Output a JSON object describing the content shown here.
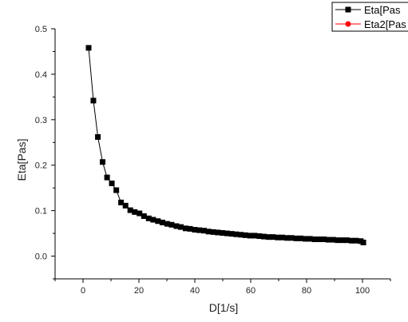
{
  "chart_data": {
    "type": "line",
    "title": "",
    "xlabel": "D[1/s]",
    "ylabel": "Eta[Pas]",
    "xlim": [
      -10,
      110
    ],
    "ylim": [
      -0.05,
      0.5
    ],
    "x_ticks": [
      0,
      20,
      40,
      60,
      80,
      100
    ],
    "y_ticks": [
      0.0,
      0.1,
      0.2,
      0.3,
      0.4,
      0.5
    ],
    "x_tick_labels": [
      "0",
      "20",
      "40",
      "60",
      "80",
      "100"
    ],
    "y_tick_labels": [
      "0.0",
      "0.1",
      "0.2",
      "0.3",
      "0.4",
      "0.5"
    ],
    "grid": false,
    "legend_position": "top-right",
    "colors": {
      "series1": "#000000",
      "series2": "#ff0000"
    },
    "series": [
      {
        "name": "Eta[Pas",
        "marker": "square",
        "color": "#000000",
        "x": [
          2,
          3.7,
          5.3,
          7,
          8.6,
          10.3,
          11.9,
          13.6,
          15.2,
          16.9,
          18.5,
          20.2,
          21.8,
          23.5,
          25.1,
          26.8,
          28.4,
          30.1,
          31.7,
          33.4,
          35,
          36.7,
          38.3,
          40,
          41.6,
          43.3,
          44.9,
          46.6,
          48.2,
          49.9,
          51.5,
          53.2,
          54.8,
          56.5,
          58.1,
          59.8,
          61.4,
          63.1,
          64.7,
          66.4,
          68,
          69.7,
          71.3,
          73,
          74.6,
          76.3,
          77.9,
          79.6,
          81.2,
          82.9,
          84.5,
          86.2,
          87.8,
          89.5,
          91.1,
          92.8,
          94.4,
          96.1,
          97.7,
          99.4,
          100.3
        ],
        "values": [
          0.458,
          0.342,
          0.262,
          0.207,
          0.173,
          0.16,
          0.145,
          0.118,
          0.111,
          0.101,
          0.097,
          0.094,
          0.088,
          0.083,
          0.08,
          0.077,
          0.074,
          0.071,
          0.069,
          0.066,
          0.064,
          0.061,
          0.06,
          0.058,
          0.057,
          0.056,
          0.054,
          0.053,
          0.052,
          0.051,
          0.05,
          0.049,
          0.048,
          0.047,
          0.046,
          0.045,
          0.045,
          0.044,
          0.043,
          0.042,
          0.042,
          0.041,
          0.041,
          0.04,
          0.04,
          0.039,
          0.039,
          0.038,
          0.038,
          0.037,
          0.037,
          0.037,
          0.036,
          0.036,
          0.035,
          0.035,
          0.035,
          0.034,
          0.034,
          0.033,
          0.03
        ]
      },
      {
        "name": "Eta2[Pas",
        "marker": "circle",
        "color": "#ff0000",
        "x": [],
        "values": []
      }
    ]
  }
}
